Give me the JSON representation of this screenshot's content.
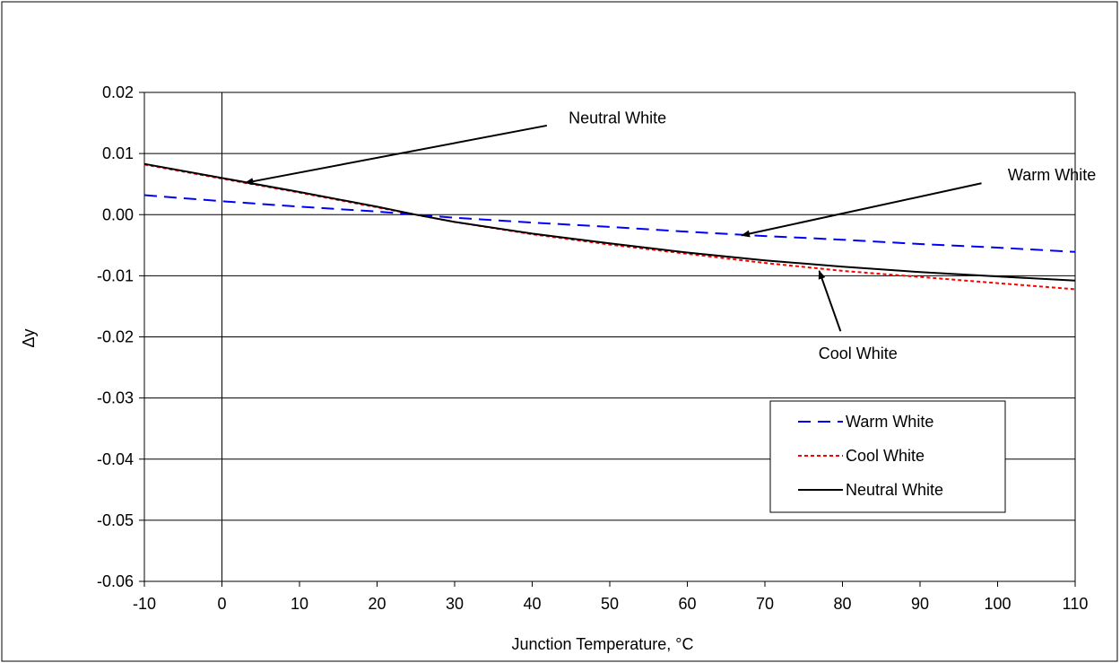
{
  "chart_data": {
    "type": "line",
    "title": "",
    "xlabel": "Junction Temperature, °C",
    "ylabel": "Δy",
    "xlim": [
      -10,
      110
    ],
    "ylim": [
      -0.06,
      0.02
    ],
    "xticks": [
      -10,
      0,
      10,
      20,
      30,
      40,
      50,
      60,
      70,
      80,
      90,
      100,
      110
    ],
    "xtick_labels": [
      "-10",
      "0",
      "10",
      "20",
      "30",
      "40",
      "50",
      "60",
      "70",
      "80",
      "90",
      "100",
      "110"
    ],
    "yticks": [
      0.02,
      0.01,
      0.0,
      -0.01,
      -0.02,
      -0.03,
      -0.04,
      -0.05,
      -0.06
    ],
    "ytick_labels": [
      "0.02",
      "0.01",
      "0.00",
      "-0.01",
      "-0.02",
      "-0.03",
      "-0.04",
      "-0.05",
      "-0.06"
    ],
    "grid": "horizontal",
    "legend_position": "bottom-right",
    "x": [
      -10,
      0,
      10,
      20,
      25,
      30,
      40,
      50,
      60,
      70,
      80,
      90,
      100,
      110
    ],
    "series": [
      {
        "name": "Warm White",
        "color": "#0000ff",
        "dash": "dashed",
        "values": [
          0.0032,
          0.0022,
          0.0013,
          0.0005,
          0.0,
          -0.0005,
          -0.0013,
          -0.002,
          -0.0028,
          -0.0035,
          -0.0041,
          -0.0048,
          -0.0054,
          -0.0061
        ]
      },
      {
        "name": "Cool White",
        "color": "#ff0000",
        "dash": "dotted",
        "values": [
          0.0082,
          0.0059,
          0.0036,
          0.0012,
          0.0,
          -0.0012,
          -0.0032,
          -0.0049,
          -0.0064,
          -0.0079,
          -0.0092,
          -0.0102,
          -0.0112,
          -0.0122
        ]
      },
      {
        "name": "Neutral White",
        "color": "#000000",
        "dash": "solid",
        "values": [
          0.0083,
          0.006,
          0.0037,
          0.0013,
          0.0,
          -0.0012,
          -0.0031,
          -0.0047,
          -0.0062,
          -0.0075,
          -0.0085,
          -0.0094,
          -0.0101,
          -0.0108
        ]
      }
    ],
    "annotations": [
      {
        "text": "Neutral White",
        "text_at": [
          51,
          0.0149
        ],
        "arrow_to": [
          3,
          0.0052
        ]
      },
      {
        "text": "Warm White",
        "text_at": [
          107,
          0.0056
        ],
        "arrow_to": [
          67,
          -0.0034
        ]
      },
      {
        "text": "Cool White",
        "text_at": [
          82,
          -0.0236
        ],
        "arrow_to": [
          77,
          -0.0092
        ]
      }
    ]
  }
}
